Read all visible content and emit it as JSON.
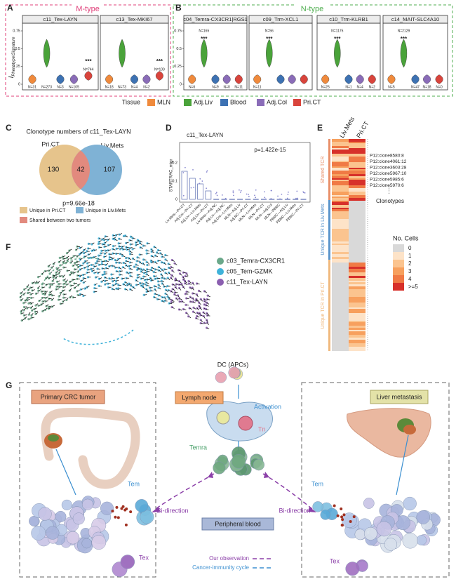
{
  "panel_a": {
    "letter": "A",
    "title": "M-type",
    "plots": [
      {
        "title": "c11_Tex-LAYN",
        "annotations": [
          "***",
          "N=744",
          "N=31",
          "N=273",
          "N=3",
          "N=105"
        ]
      },
      {
        "title": "c13_Tex-MKI67",
        "annotations": [
          "***",
          "N=100",
          "N=18",
          "N=73",
          "N=4",
          "N=2"
        ]
      }
    ]
  },
  "panel_b": {
    "letter": "B",
    "title": "N-type",
    "plots": [
      {
        "title": "c04_Temra-CX3CR1|RGS1",
        "annotations": [
          "***",
          "N=165",
          "N=6",
          "N=9",
          "N=0",
          "N=11"
        ]
      },
      {
        "title": "c09_Trm-XCL1",
        "annotations": [
          "***",
          "N=56",
          "N=11"
        ]
      },
      {
        "title": "c10_Trm-KLRB1",
        "annotations": [
          "***",
          "N=1175",
          "N=25",
          "N=1",
          "N=4",
          "N=2"
        ]
      },
      {
        "title": "c14_MAIT-SLC4A10",
        "annotations": [
          "***",
          "N=2129",
          "N=5",
          "N=47",
          "N=18",
          "N=0"
        ]
      }
    ]
  },
  "y_label": {
    "main": "I",
    "sub": "Phenotype/Signature"
  },
  "yticks": [
    "0",
    "0.25",
    "0.5",
    "0.75"
  ],
  "tissue_legend": {
    "title": "Tissue",
    "items": [
      {
        "label": "MLN",
        "color": "#f08a3c"
      },
      {
        "label": "Adj.Liv",
        "color": "#4aa33a"
      },
      {
        "label": "Blood",
        "color": "#3d72b3"
      },
      {
        "label": "Adj.Col",
        "color": "#8a6cb8"
      },
      {
        "label": "Pri.CT",
        "color": "#d9443c"
      }
    ]
  },
  "panel_c": {
    "letter": "C",
    "title": "Clonotype numbers of c11_Tex-LAYN",
    "sets": [
      "Pri.CT",
      "Liv.Mets"
    ],
    "counts": [
      "130",
      "42",
      "107"
    ],
    "p_value": "p=9.66e-18",
    "legend": [
      {
        "label": "Unique in Pri.CT",
        "color": "#e6c48c"
      },
      {
        "label": "Unique in Liv.Mets",
        "color": "#7fb2d5"
      },
      {
        "label": "Shared between two tumors",
        "color": "#e28a7e"
      }
    ]
  },
  "panel_d": {
    "letter": "D",
    "title": "c11_Tex-LAYN",
    "p_value": "p=1.422e-15",
    "y_label": "STARTRAC_migr",
    "yticks": [
      "0",
      "0.1",
      "0.2"
    ],
    "categories": [
      "Liv.Mets—Pri.CT",
      "Adj.Col—Pri.CT",
      "Adj.Liv—Liv.Mets",
      "Adj.Liv—Pri.CT",
      "Liv.Mets—Adj.NC",
      "Adj.Liv—Adj.NC",
      "Adj.Col—Liv.Mets",
      "MLN—Adj.Liv",
      "Adj.NC—Pri.CT",
      "MLN—Liv.Mets",
      "MLN—Pri.CT",
      "MLN—Adj.Col",
      "MLN—PBMC",
      "PBMC—Adj.Liv",
      "PBMC—Liv.Mets",
      "PBMC—Pri.CT"
    ]
  },
  "panel_e": {
    "letter": "E",
    "columns": [
      "Liv.Mets",
      "Pri.CT"
    ],
    "groups": [
      "Shared TCR",
      "Unique TCR in Liv.Mets",
      "Unique TCR in Pri.CT"
    ],
    "clones": [
      "P12:clone8580:8",
      "P12:clone4061:12",
      "P12:clone3603:28",
      "P12:clone5967:10",
      "P12:clone5985:6",
      "P12:clone5970:6"
    ],
    "clone_ellipsis": "......",
    "clone_label": "Clonotypes",
    "legend": {
      "title": "No. Cells",
      "items": [
        {
          "label": "0",
          "color": "#d9d9d9"
        },
        {
          "label": "1",
          "color": "#fde3c8"
        },
        {
          "label": "2",
          "color": "#fbc48f"
        },
        {
          "label": "3",
          "color": "#f7a05e"
        },
        {
          "label": "4",
          "color": "#f07a45"
        },
        {
          "label": ">=5",
          "color": "#d7302a"
        }
      ]
    }
  },
  "panel_f": {
    "letter": "F",
    "legend": [
      {
        "label": "c03_Temra-CX3CR1",
        "color": "#6aa88a"
      },
      {
        "label": "c05_Tem-GZMK",
        "color": "#3fb2d9"
      },
      {
        "label": "c11_Tex-LAYN",
        "color": "#8b5fb0"
      }
    ]
  },
  "panel_g": {
    "letter": "G",
    "labels": {
      "primary": "Primary CRC tumor",
      "liver": "Liver metastasis",
      "dc": "DC (APCs)",
      "lymph": "Lymph node",
      "activation": "Activation",
      "tn": "Tn",
      "temra": "Temra",
      "tem_left": "Tem",
      "tem_right": "Tem",
      "tex_left": "Tex",
      "tex_right": "Tex",
      "bi_left": "Bi-direction",
      "bi_right": "Bi-direction",
      "blood": "Peripheral blood"
    },
    "legend": [
      "Our observation",
      "Cancer-immunity cycle"
    ]
  }
}
